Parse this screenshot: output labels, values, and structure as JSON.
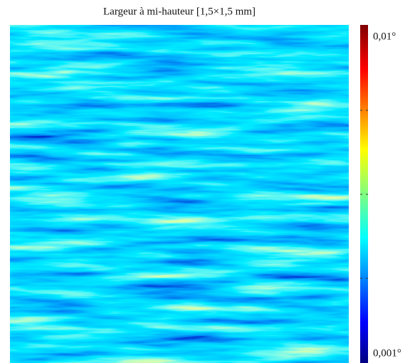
{
  "title": "Largeur à mi-hauteur [1,5×1,5 mm]",
  "colorbar": {
    "max_label": "0,01°",
    "min_label": "0,001°"
  }
}
